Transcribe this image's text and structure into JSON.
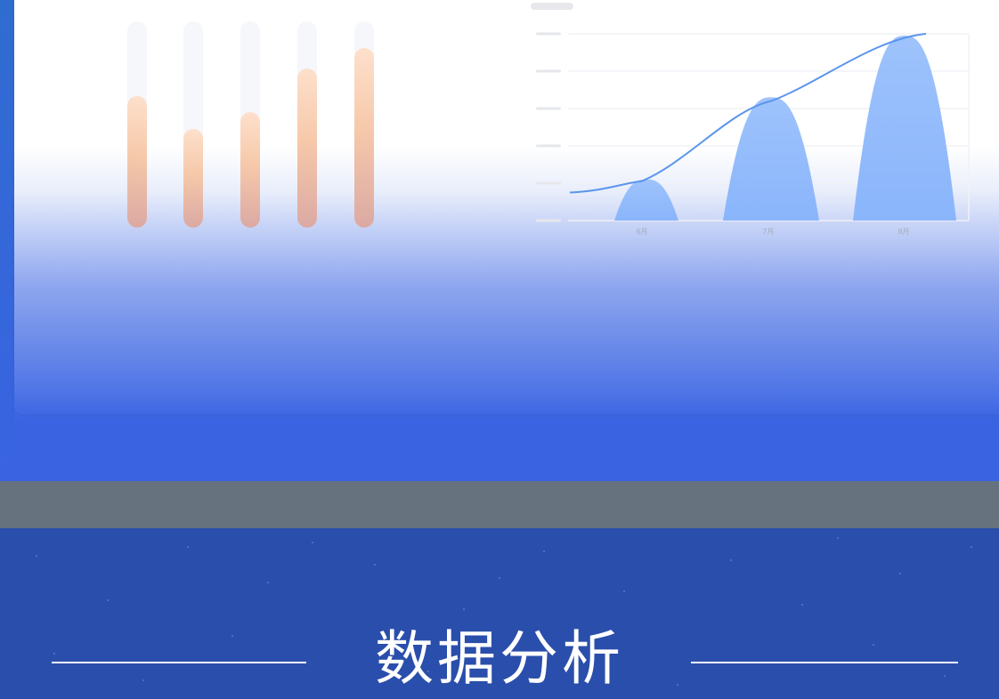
{
  "bar_chart": {
    "levels": [
      0.64,
      0.48,
      0.56,
      0.77,
      0.87
    ],
    "fill_top_color": "#fde0cc",
    "fill_bottom_color": "#dba9a3"
  },
  "area_chart": {
    "type": "area",
    "categories": [
      "6月",
      "7月",
      "8月"
    ],
    "values": [
      22,
      66,
      99
    ],
    "trend_line": [
      15,
      21,
      64,
      100
    ],
    "series_color": "#8ab5fb",
    "line_color": "#5b95ec",
    "y_ticks": 6,
    "grid": true
  },
  "banner": {
    "title": "数据分析"
  }
}
